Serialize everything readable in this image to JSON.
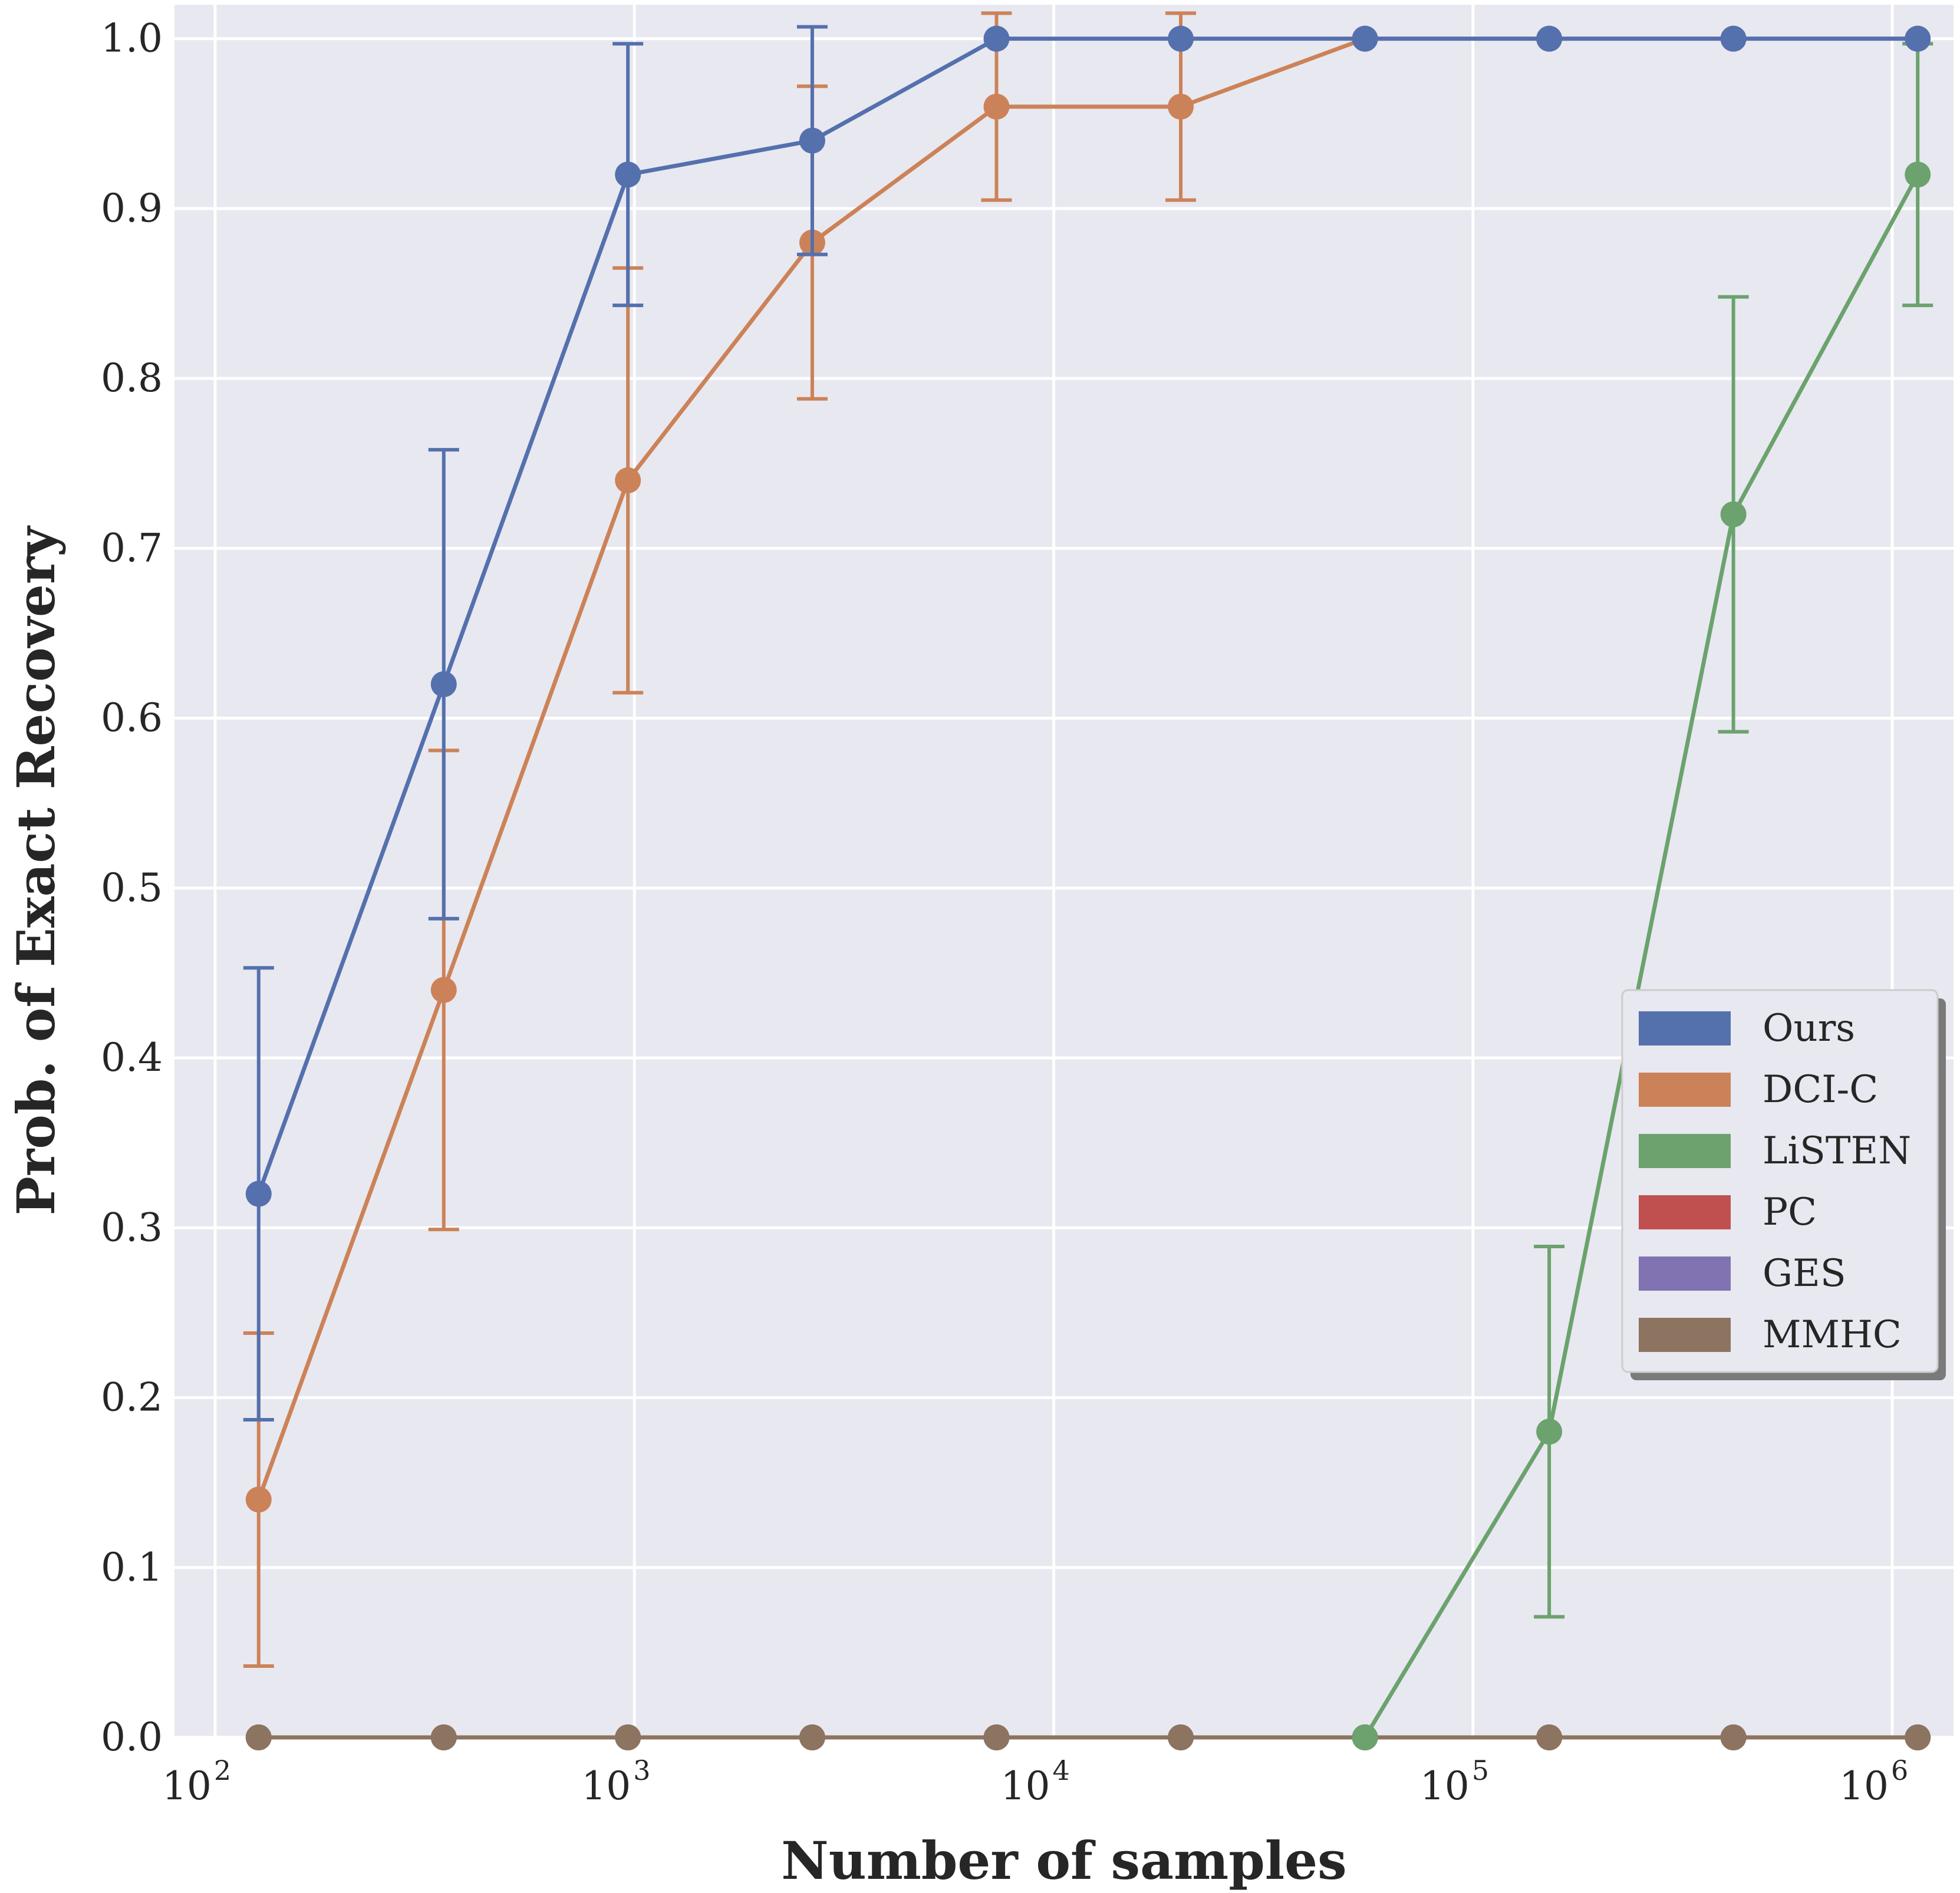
{
  "chart_data": {
    "type": "line",
    "title": "",
    "xlabel": "Number of samples",
    "ylabel": "Prob. of Exact Recovery",
    "xscale": "log",
    "xlim": [
      80,
      1400000
    ],
    "ylim": [
      0.0,
      1.02
    ],
    "grid": true,
    "legend_position": "center-right",
    "x_ticks": [
      {
        "value": 100,
        "base": "10",
        "exp": "2"
      },
      {
        "value": 1000,
        "base": "10",
        "exp": "3"
      },
      {
        "value": 10000,
        "base": "10",
        "exp": "4"
      },
      {
        "value": 100000,
        "base": "10",
        "exp": "5"
      },
      {
        "value": 1000000,
        "base": "10",
        "exp": "6"
      }
    ],
    "y_ticks": [
      {
        "value": 0.0,
        "label": "0.0"
      },
      {
        "value": 0.1,
        "label": "0.1"
      },
      {
        "value": 0.2,
        "label": "0.2"
      },
      {
        "value": 0.3,
        "label": "0.3"
      },
      {
        "value": 0.4,
        "label": "0.4"
      },
      {
        "value": 0.5,
        "label": "0.5"
      },
      {
        "value": 0.6,
        "label": "0.6"
      },
      {
        "value": 0.7,
        "label": "0.7"
      },
      {
        "value": 0.8,
        "label": "0.8"
      },
      {
        "value": 0.9,
        "label": "0.9"
      },
      {
        "value": 1.0,
        "label": "1.0"
      }
    ],
    "x": [
      127,
      351,
      965,
      2656,
      7305,
      20092,
      55262,
      152000,
      418000,
      1150000
    ],
    "series": [
      {
        "name": "Ours",
        "color": "#5470ad",
        "values": [
          0.32,
          0.62,
          0.92,
          0.94,
          1.0,
          1.0,
          1.0,
          1.0,
          1.0,
          1.0
        ],
        "err": [
          0.133,
          0.138,
          0.077,
          0.067,
          0.0,
          0.0,
          0.0,
          0.0,
          0.0,
          0.0
        ]
      },
      {
        "name": "DCI-C",
        "color": "#cc8258",
        "values": [
          0.14,
          0.44,
          0.74,
          0.88,
          0.96,
          0.96,
          1.0,
          1.0,
          1.0,
          1.0
        ],
        "err": [
          0.098,
          0.141,
          0.125,
          0.092,
          0.055,
          0.055,
          0.0,
          0.0,
          0.0,
          0.0
        ]
      },
      {
        "name": "LiSTEN",
        "color": "#6ba26d",
        "values": [
          null,
          null,
          null,
          null,
          null,
          null,
          0.0,
          0.18,
          0.72,
          0.92
        ],
        "err": [
          null,
          null,
          null,
          null,
          null,
          null,
          0.0,
          0.109,
          0.128,
          0.077
        ]
      },
      {
        "name": "PC",
        "color": "#c0504f",
        "values": [
          0,
          0,
          0,
          0,
          0,
          0,
          0,
          0,
          0,
          0
        ],
        "err": [
          0,
          0,
          0,
          0,
          0,
          0,
          0,
          0,
          0,
          0
        ]
      },
      {
        "name": "GES",
        "color": "#8172b2",
        "values": [
          0,
          0,
          0,
          0,
          0,
          0,
          0,
          0,
          0,
          0
        ],
        "err": [
          0,
          0,
          0,
          0,
          0,
          0,
          0,
          0,
          0,
          0
        ]
      },
      {
        "name": "MMHC",
        "color": "#8c7460",
        "values": [
          0,
          0,
          0,
          0,
          0,
          0,
          0,
          0,
          0,
          0
        ],
        "err": [
          0,
          0,
          0,
          0,
          0,
          0,
          0,
          0,
          0,
          0
        ]
      }
    ]
  }
}
